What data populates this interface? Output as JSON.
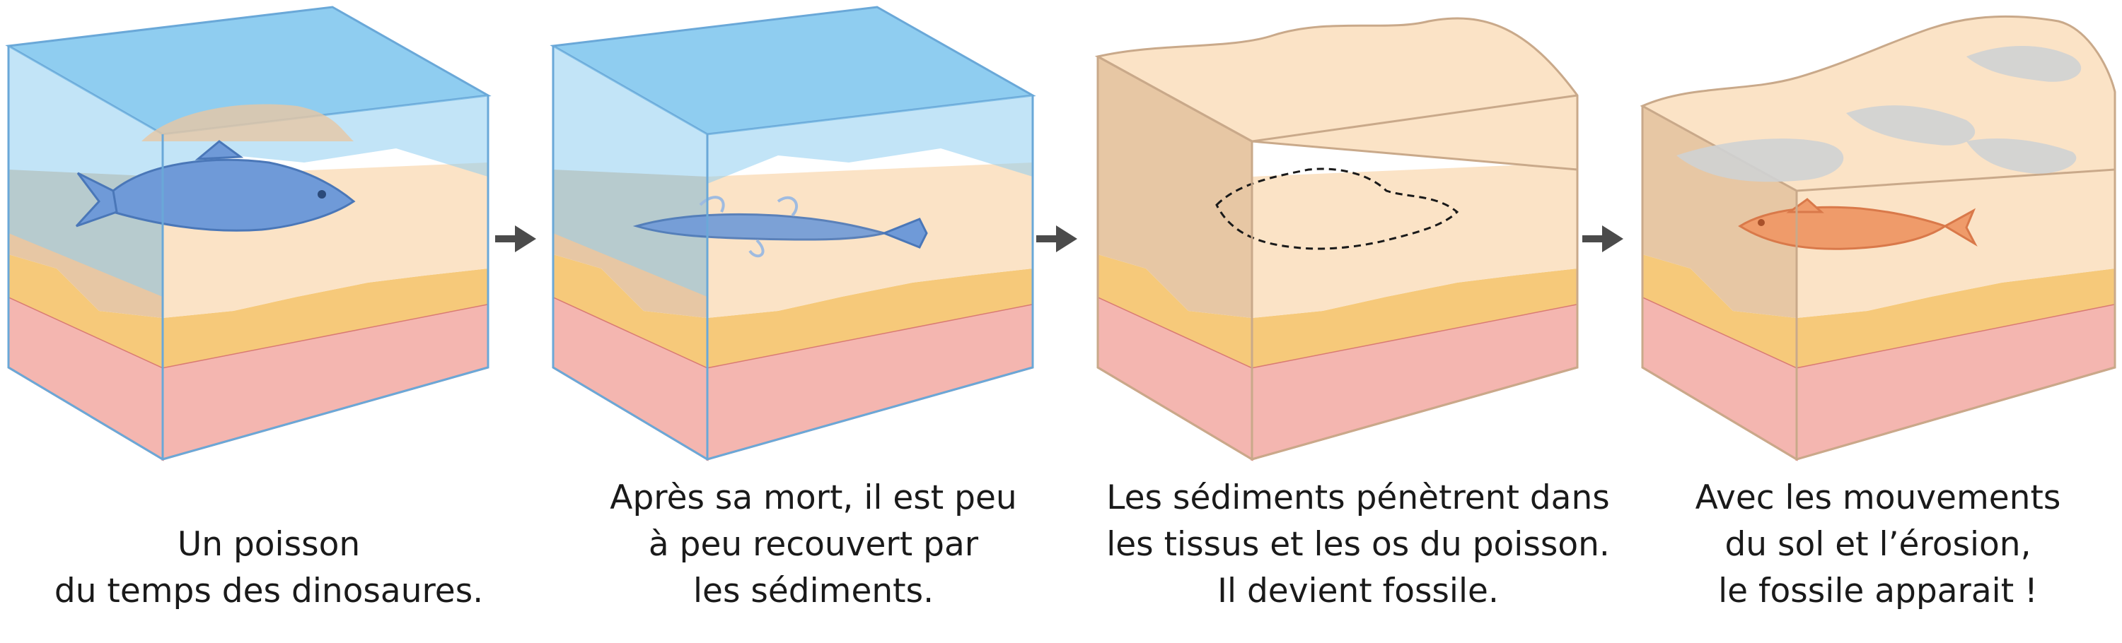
{
  "colors": {
    "water": "#8fcdf0",
    "water_edge": "#6aa8d8",
    "sand": "#fbe3c6",
    "sand_dark": "#e7c7a4",
    "ochre": "#f6c97a",
    "ochre_dark": "#d9a35c",
    "pink": "#f4b6b0",
    "pink_edge": "#d97b73",
    "fish_blue": "#6f9ad8",
    "fossil": "#ef9b6a",
    "rock_grey": "#cfd1d3",
    "arrow": "#4b4b4b"
  },
  "panels": [
    {
      "stage": "living-fish",
      "caption_lines": [
        "Un poisson",
        "du temps des dinosaures."
      ]
    },
    {
      "stage": "buried-fish",
      "caption_lines": [
        "Après sa mort, il est peu",
        "à peu recouvert par",
        "les sédiments."
      ]
    },
    {
      "stage": "fossilization",
      "caption_lines": [
        "Les sédiments pénètrent dans",
        "les tissus et les os du poisson.",
        "Il devient fossile."
      ]
    },
    {
      "stage": "fossil-exposed",
      "caption_lines": [
        "Avec les mouvements",
        "du sol et l’érosion,",
        "le fossile apparait !"
      ]
    }
  ],
  "arrows": [
    "arrow-1-to-2",
    "arrow-2-to-3",
    "arrow-3-to-4"
  ]
}
